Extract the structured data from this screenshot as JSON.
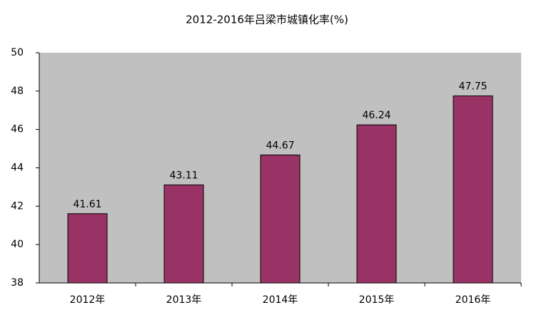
{
  "chart_data": {
    "type": "bar",
    "title": "2012-2016年吕梁市城镇化率(%)",
    "categories": [
      "2012年",
      "2013年",
      "2014年",
      "2015年",
      "2016年"
    ],
    "values": [
      41.61,
      43.11,
      44.67,
      46.24,
      47.75
    ],
    "color": "#993366",
    "ylim": [
      38,
      50
    ],
    "yticks": [
      38,
      40,
      42,
      44,
      46,
      48,
      50
    ],
    "grid": false
  }
}
